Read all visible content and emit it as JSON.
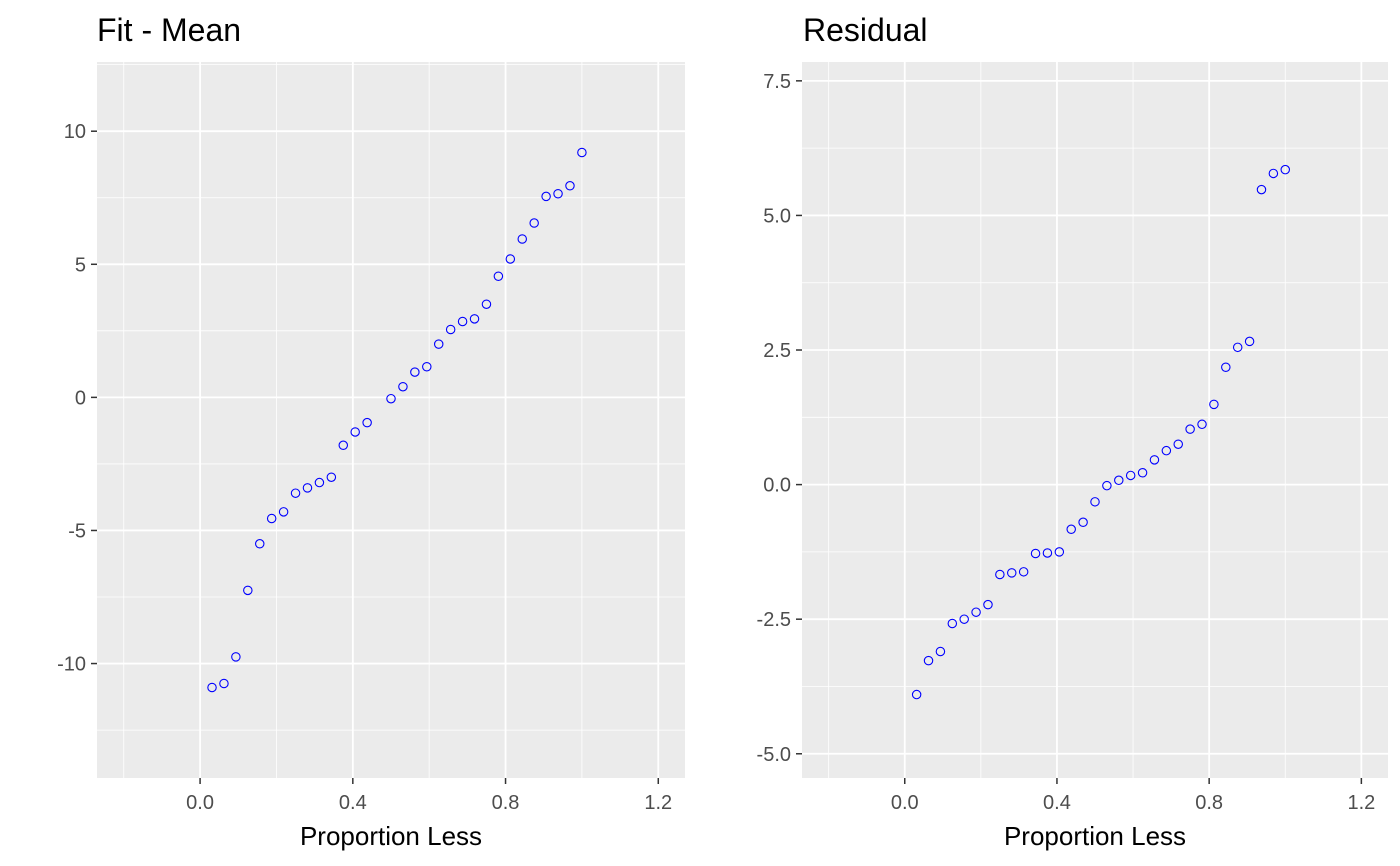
{
  "chart_data": [
    {
      "type": "scatter",
      "title": "Fit - Mean",
      "xlabel": "Proportion Less",
      "ylabel": "",
      "xlim": [
        -0.27,
        1.27
      ],
      "ylim": [
        -14.3,
        12.6
      ],
      "xticks": [
        0.0,
        0.4,
        0.8,
        1.2
      ],
      "xtick_labels": [
        "0.0",
        "0.4",
        "0.8",
        "1.2"
      ],
      "yticks": [
        -10,
        -5,
        0,
        5,
        10
      ],
      "ytick_labels": [
        "-10",
        "-5",
        "0",
        "5",
        "10"
      ],
      "grid": true,
      "point_color": "#0000ff",
      "x": [
        0.03125,
        0.0625,
        0.09375,
        0.125,
        0.15625,
        0.1875,
        0.21875,
        0.25,
        0.28125,
        0.3125,
        0.34375,
        0.375,
        0.40625,
        0.4375,
        0.5,
        0.53125,
        0.5625,
        0.59375,
        0.625,
        0.65625,
        0.6875,
        0.71875,
        0.75,
        0.78125,
        0.8125,
        0.84375,
        0.875,
        0.90625,
        0.9375,
        0.96875,
        1.0
      ],
      "y": [
        -10.9,
        -10.75,
        -9.75,
        -7.25,
        -5.5,
        -4.55,
        -4.3,
        -3.6,
        -3.4,
        -3.2,
        -3.0,
        -1.8,
        -1.3,
        -0.95,
        -0.05,
        0.4,
        0.95,
        1.15,
        2.0,
        2.55,
        2.85,
        2.95,
        3.5,
        4.55,
        5.2,
        5.95,
        6.55,
        7.55,
        7.65,
        7.95,
        9.2
      ]
    },
    {
      "type": "scatter",
      "title": "Residual",
      "xlabel": "Proportion Less",
      "ylabel": "",
      "xlim": [
        -0.27,
        1.27
      ],
      "ylim": [
        -5.45,
        7.85
      ],
      "xticks": [
        0.0,
        0.4,
        0.8,
        1.2
      ],
      "xtick_labels": [
        "0.0",
        "0.4",
        "0.8",
        "1.2"
      ],
      "yticks": [
        -5.0,
        -2.5,
        0.0,
        2.5,
        5.0,
        7.5
      ],
      "ytick_labels": [
        "-5.0",
        "-2.5",
        "0.0",
        "2.5",
        "5.0",
        "7.5"
      ],
      "grid": true,
      "point_color": "#0000ff",
      "x": [
        0.03125,
        0.0625,
        0.09375,
        0.125,
        0.15625,
        0.1875,
        0.21875,
        0.25,
        0.28125,
        0.3125,
        0.34375,
        0.375,
        0.40625,
        0.4375,
        0.46875,
        0.5,
        0.53125,
        0.5625,
        0.59375,
        0.625,
        0.65625,
        0.6875,
        0.71875,
        0.75,
        0.78125,
        0.8125,
        0.84375,
        0.875,
        0.90625,
        0.9375,
        0.96875,
        1.0
      ],
      "y": [
        -3.9,
        -3.27,
        -3.1,
        -2.58,
        -2.5,
        -2.37,
        -2.23,
        -1.67,
        -1.64,
        -1.62,
        -1.28,
        -1.27,
        -1.25,
        -0.83,
        -0.7,
        -0.32,
        -0.02,
        0.08,
        0.17,
        0.22,
        0.46,
        0.63,
        0.75,
        1.03,
        1.12,
        1.49,
        2.18,
        2.55,
        2.66,
        5.48,
        5.78,
        5.85
      ]
    }
  ]
}
